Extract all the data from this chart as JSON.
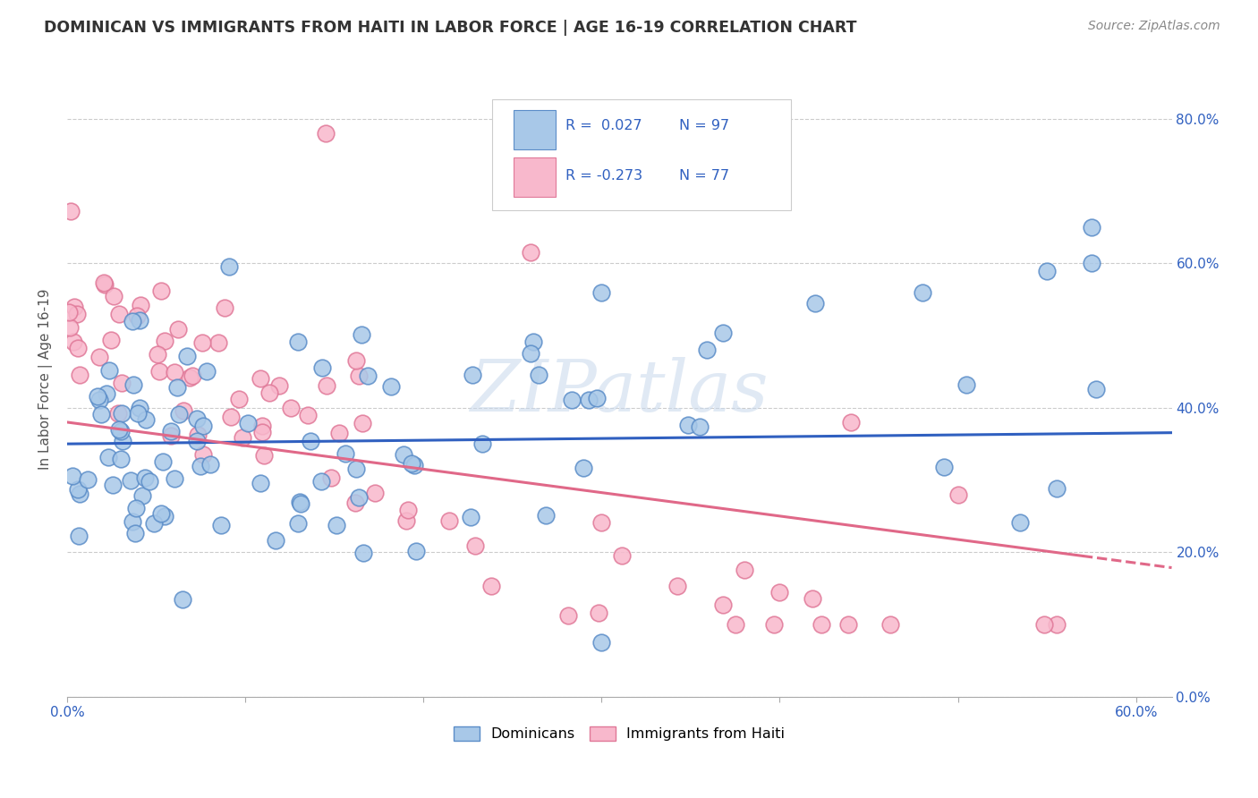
{
  "title": "DOMINICAN VS IMMIGRANTS FROM HAITI IN LABOR FORCE | AGE 16-19 CORRELATION CHART",
  "source": "Source: ZipAtlas.com",
  "ylabel": "In Labor Force | Age 16-19",
  "xlim": [
    0.0,
    0.62
  ],
  "ylim": [
    0.0,
    0.88
  ],
  "y_ticks": [
    0.0,
    0.2,
    0.4,
    0.6,
    0.8
  ],
  "blue_color": "#a8c8e8",
  "blue_edge_color": "#5b8dc8",
  "pink_color": "#f8b8cc",
  "pink_edge_color": "#e07898",
  "blue_line_color": "#3060c0",
  "pink_line_color": "#e06888",
  "watermark_text": "ZIPatlas",
  "legend_dominicans": "Dominicans",
  "legend_haiti": "Immigrants from Haiti",
  "blue_R": "0.027",
  "blue_N": "97",
  "pink_R": "-0.273",
  "pink_N": "77"
}
